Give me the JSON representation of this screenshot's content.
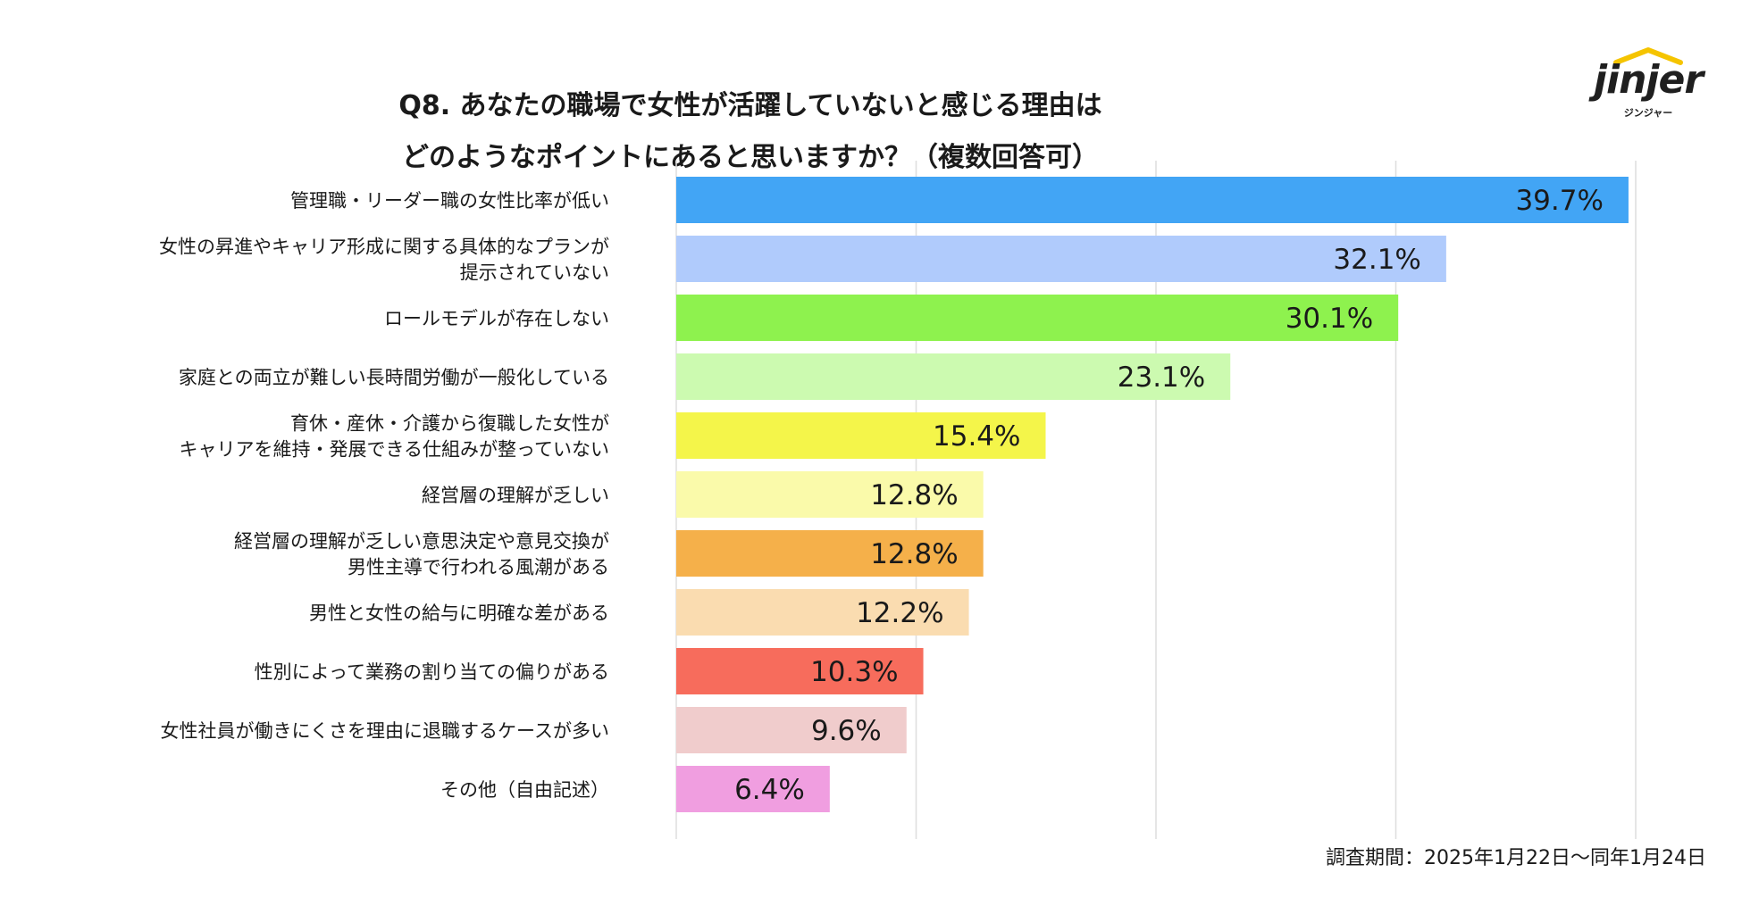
{
  "header": {
    "title_line1": "Q8. あなたの職場で女性が活躍していないと感じる理由は",
    "title_line2": "どのようなポイントにあると思いますか？（複数回答可）"
  },
  "logo": {
    "word": "jinjer",
    "sub": "ジンジャー",
    "accent": "#f5c400"
  },
  "footer": {
    "survey_period": "調査期間：2025年1月22日〜同年1月24日"
  },
  "chart_data": {
    "type": "bar",
    "orientation": "horizontal",
    "title": "Q8. あなたの職場で女性が活躍していないと感じる理由は どのようなポイントにあると思いますか？（複数回答可）",
    "xlim": [
      0,
      40
    ],
    "gridlines": [
      0,
      10,
      20,
      30,
      40
    ],
    "unit": "%",
    "categories": [
      [
        "管理職・リーダー職の女性比率が低い"
      ],
      [
        "女性の昇進やキャリア形成に関する具体的なプランが",
        "提示されていない"
      ],
      [
        "ロールモデルが存在しない"
      ],
      [
        "家庭との両立が難しい長時間労働が一般化している"
      ],
      [
        "育休・産休・介護から復職した女性が",
        "キャリアを維持・発展できる仕組みが整っていない"
      ],
      [
        "経営層の理解が乏しい"
      ],
      [
        "経営層の理解が乏しい意思決定や意見交換が",
        "男性主導で行われる風潮がある"
      ],
      [
        "男性と女性の給与に明確な差がある"
      ],
      [
        "性別によって業務の割り当ての偏りがある"
      ],
      [
        "女性社員が働きにくさを理由に退職するケースが多い"
      ],
      [
        "その他（自由記述）"
      ]
    ],
    "values": [
      39.7,
      32.1,
      30.1,
      23.1,
      15.4,
      12.8,
      12.8,
      12.2,
      10.3,
      9.6,
      6.4
    ],
    "value_labels": [
      "39.7%",
      "32.1%",
      "30.1%",
      "23.1%",
      "15.4%",
      "12.8%",
      "12.8%",
      "12.2%",
      "10.3%",
      "9.6%",
      "6.4%"
    ],
    "colors": [
      "#42a5f5",
      "#b0cbfc",
      "#8ef24e",
      "#ccfab0",
      "#f4f54a",
      "#fafaaa",
      "#f5b04a",
      "#fadcb0",
      "#f76c5c",
      "#f0cccc",
      "#f09ee0"
    ]
  }
}
